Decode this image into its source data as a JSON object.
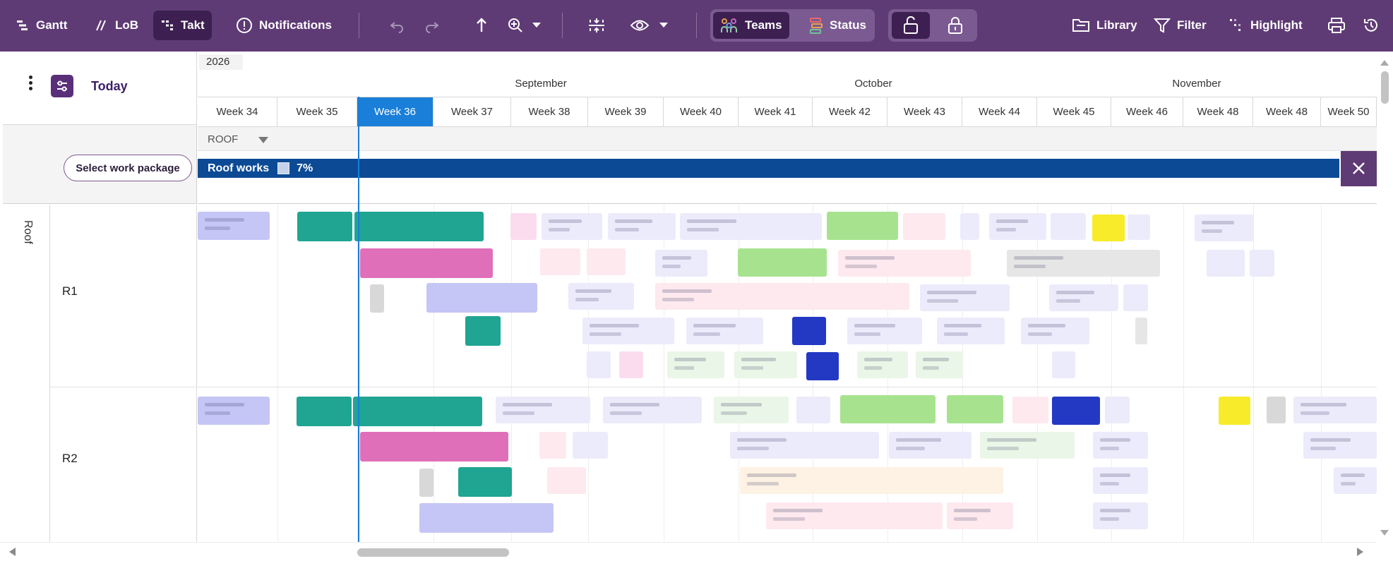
{
  "toolbar": {
    "gantt": "Gantt",
    "lob": "LoB",
    "takt": "Takt",
    "notifications": "Notifications",
    "teams": "Teams",
    "status": "Status",
    "library": "Library",
    "filter": "Filter",
    "highlight": "Highlight"
  },
  "left_panel": {
    "today_label": "Today",
    "select_wp_label": "Select work package",
    "zone_label": "Roof",
    "rows": [
      "R1",
      "R2"
    ]
  },
  "timeline": {
    "year": "2026",
    "months": [
      "September",
      "October",
      "November"
    ],
    "weeks": [
      "Week 34",
      "Week 35",
      "Week 36",
      "Week 37",
      "Week 38",
      "Week 39",
      "Week 40",
      "Week 41",
      "Week 42",
      "Week 43",
      "Week 44",
      "Week 45",
      "Week 46",
      "Week 48",
      "Week 48",
      "Week 50"
    ],
    "current_week": "Week 36"
  },
  "work_package": {
    "group_label": "ROOF",
    "name": "Roof works",
    "progress": "7%"
  },
  "colors": {
    "toolbar_bg": "#5f3b76",
    "current_week": "#1a7fd8",
    "work_package_bar": "#0c4a95",
    "teal": "#20a592",
    "pink": "#e06fb9",
    "lavender": "#c5c6f5",
    "green": "#a7e38f",
    "blue": "#2339c4",
    "yellow": "#f7eb2a",
    "grey": "#d8d8d8"
  }
}
